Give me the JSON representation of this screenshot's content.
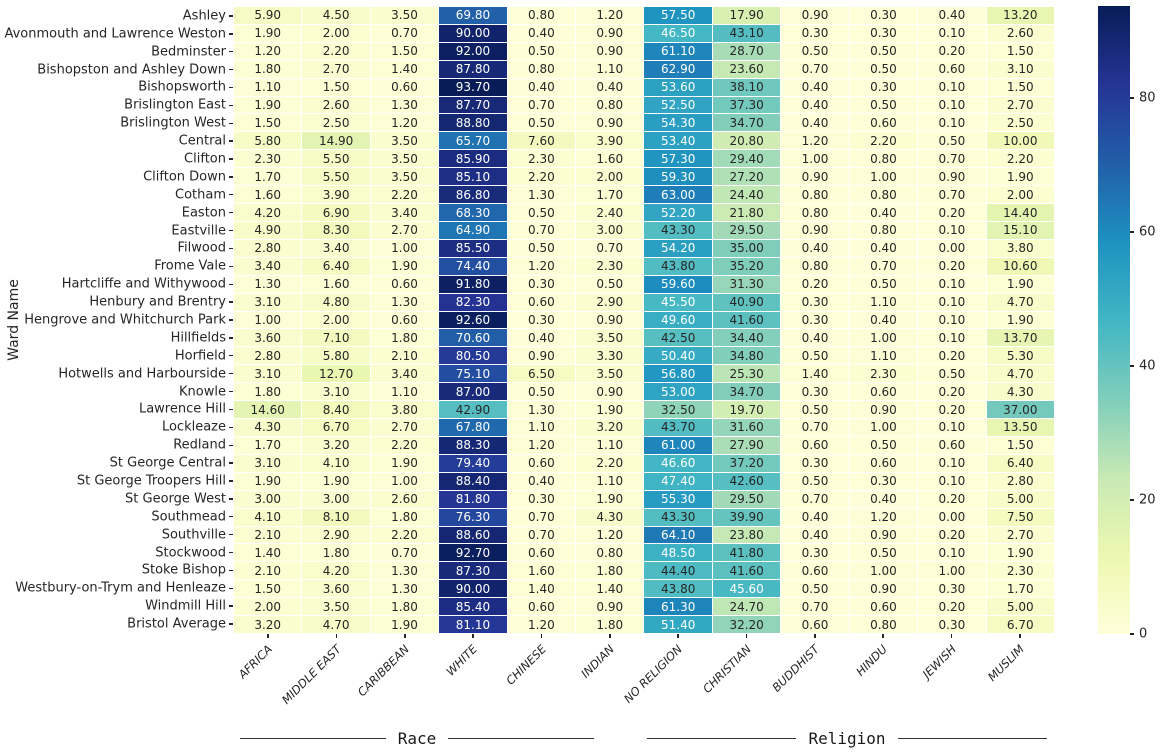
{
  "chart_data": {
    "type": "heatmap",
    "ylabel": "Ward Name",
    "colormap": "YlGnBu",
    "vmin": 0,
    "vmax": 93.7,
    "colorbar_ticks": [
      0,
      20,
      40,
      60,
      80
    ],
    "legend_position": "right",
    "columns": [
      "AFRICA",
      "MIDDLE EAST",
      "CARIBBEAN",
      "WHITE",
      "CHINESE",
      "INDIAN",
      "NO RELIGION",
      "CHRISTIAN",
      "BUDDHIST",
      "HINDU",
      "JEWISH",
      "MUSLIM"
    ],
    "xlabel_groups": [
      {
        "label": "Race",
        "columns": [
          0,
          5
        ]
      },
      {
        "label": "Religion",
        "columns": [
          6,
          11
        ]
      }
    ],
    "rows": [
      {
        "name": "Ashley",
        "values": [
          "5.90",
          "4.50",
          "3.50",
          "69.80",
          "0.80",
          "1.20",
          "57.50",
          "17.90",
          "0.90",
          "0.30",
          "0.40",
          "13.20"
        ]
      },
      {
        "name": "Avonmouth and Lawrence Weston",
        "values": [
          "1.90",
          "2.00",
          "0.70",
          "90.00",
          "0.40",
          "0.90",
          "46.50",
          "43.10",
          "0.30",
          "0.30",
          "0.10",
          "2.60"
        ]
      },
      {
        "name": "Bedminster",
        "values": [
          "1.20",
          "2.20",
          "1.50",
          "92.00",
          "0.50",
          "0.90",
          "61.10",
          "28.70",
          "0.50",
          "0.50",
          "0.20",
          "1.50"
        ]
      },
      {
        "name": "Bishopston and Ashley Down",
        "values": [
          "1.80",
          "2.70",
          "1.40",
          "87.80",
          "0.80",
          "1.10",
          "62.90",
          "23.60",
          "0.70",
          "0.50",
          "0.60",
          "3.10"
        ]
      },
      {
        "name": "Bishopsworth",
        "values": [
          "1.10",
          "1.50",
          "0.60",
          "93.70",
          "0.40",
          "0.40",
          "53.60",
          "38.10",
          "0.40",
          "0.30",
          "0.10",
          "1.50"
        ]
      },
      {
        "name": "Brislington East",
        "values": [
          "1.90",
          "2.60",
          "1.30",
          "87.70",
          "0.70",
          "0.80",
          "52.50",
          "37.30",
          "0.40",
          "0.50",
          "0.10",
          "2.70"
        ]
      },
      {
        "name": "Brislington West",
        "values": [
          "1.50",
          "2.50",
          "1.20",
          "88.80",
          "0.50",
          "0.90",
          "54.30",
          "34.70",
          "0.40",
          "0.60",
          "0.10",
          "2.50"
        ]
      },
      {
        "name": "Central",
        "values": [
          "5.80",
          "14.90",
          "3.50",
          "65.70",
          "7.60",
          "3.90",
          "53.40",
          "20.80",
          "1.20",
          "2.20",
          "0.50",
          "10.00"
        ]
      },
      {
        "name": "Clifton",
        "values": [
          "2.30",
          "5.50",
          "3.50",
          "85.90",
          "2.30",
          "1.60",
          "57.30",
          "29.40",
          "1.00",
          "0.80",
          "0.70",
          "2.20"
        ]
      },
      {
        "name": "Clifton Down",
        "values": [
          "1.70",
          "5.50",
          "3.50",
          "85.10",
          "2.20",
          "2.00",
          "59.30",
          "27.20",
          "0.90",
          "1.00",
          "0.90",
          "1.90"
        ]
      },
      {
        "name": "Cotham",
        "values": [
          "1.60",
          "3.90",
          "2.20",
          "86.80",
          "1.30",
          "1.70",
          "63.00",
          "24.40",
          "0.80",
          "0.80",
          "0.70",
          "2.00"
        ]
      },
      {
        "name": "Easton",
        "values": [
          "4.20",
          "6.90",
          "3.40",
          "68.30",
          "0.50",
          "2.40",
          "52.20",
          "21.80",
          "0.80",
          "0.40",
          "0.20",
          "14.40"
        ]
      },
      {
        "name": "Eastville",
        "values": [
          "4.90",
          "8.30",
          "2.70",
          "64.90",
          "0.70",
          "3.00",
          "43.30",
          "29.50",
          "0.90",
          "0.80",
          "0.10",
          "15.10"
        ]
      },
      {
        "name": "Filwood",
        "values": [
          "2.80",
          "3.40",
          "1.00",
          "85.50",
          "0.50",
          "0.70",
          "54.20",
          "35.00",
          "0.40",
          "0.40",
          "0.00",
          "3.80"
        ]
      },
      {
        "name": "Frome Vale",
        "values": [
          "3.40",
          "6.40",
          "1.90",
          "74.40",
          "1.20",
          "2.30",
          "43.80",
          "35.20",
          "0.80",
          "0.70",
          "0.20",
          "10.60"
        ]
      },
      {
        "name": "Hartcliffe and Withywood",
        "values": [
          "1.30",
          "1.60",
          "0.60",
          "91.80",
          "0.30",
          "0.50",
          "59.60",
          "31.30",
          "0.20",
          "0.50",
          "0.10",
          "1.90"
        ]
      },
      {
        "name": "Henbury and Brentry",
        "values": [
          "3.10",
          "4.80",
          "1.30",
          "82.30",
          "0.60",
          "2.90",
          "45.50",
          "40.90",
          "0.30",
          "1.10",
          "0.10",
          "4.70"
        ]
      },
      {
        "name": "Hengrove and Whitchurch Park",
        "values": [
          "1.00",
          "2.00",
          "0.60",
          "92.60",
          "0.30",
          "0.90",
          "49.60",
          "41.60",
          "0.30",
          "0.40",
          "0.10",
          "1.90"
        ]
      },
      {
        "name": "Hillfields",
        "values": [
          "3.60",
          "7.10",
          "1.80",
          "70.60",
          "0.40",
          "3.50",
          "42.50",
          "34.40",
          "0.40",
          "1.00",
          "0.10",
          "13.70"
        ]
      },
      {
        "name": "Horfield",
        "values": [
          "2.80",
          "5.80",
          "2.10",
          "80.50",
          "0.90",
          "3.30",
          "50.40",
          "34.80",
          "0.50",
          "1.10",
          "0.20",
          "5.30"
        ]
      },
      {
        "name": "Hotwells and Harbourside",
        "values": [
          "3.10",
          "12.70",
          "3.40",
          "75.10",
          "6.50",
          "3.50",
          "56.80",
          "25.30",
          "1.40",
          "2.30",
          "0.50",
          "4.70"
        ]
      },
      {
        "name": "Knowle",
        "values": [
          "1.80",
          "3.10",
          "1.10",
          "87.00",
          "0.50",
          "0.90",
          "53.00",
          "34.70",
          "0.30",
          "0.60",
          "0.20",
          "4.30"
        ]
      },
      {
        "name": "Lawrence Hill",
        "values": [
          "14.60",
          "8.40",
          "3.80",
          "42.90",
          "1.30",
          "1.90",
          "32.50",
          "19.70",
          "0.50",
          "0.90",
          "0.20",
          "37.00"
        ]
      },
      {
        "name": "Lockleaze",
        "values": [
          "4.30",
          "6.70",
          "2.70",
          "67.80",
          "1.10",
          "3.20",
          "43.70",
          "31.60",
          "0.70",
          "1.00",
          "0.10",
          "13.50"
        ]
      },
      {
        "name": "Redland",
        "values": [
          "1.70",
          "3.20",
          "2.20",
          "88.30",
          "1.20",
          "1.10",
          "61.00",
          "27.90",
          "0.60",
          "0.50",
          "0.60",
          "1.50"
        ]
      },
      {
        "name": "St George Central",
        "values": [
          "3.10",
          "4.10",
          "1.90",
          "79.40",
          "0.60",
          "2.20",
          "46.60",
          "37.20",
          "0.30",
          "0.60",
          "0.10",
          "6.40"
        ]
      },
      {
        "name": "St George Troopers Hill",
        "values": [
          "1.90",
          "1.90",
          "1.00",
          "88.40",
          "0.40",
          "1.10",
          "47.40",
          "42.60",
          "0.50",
          "0.30",
          "0.10",
          "2.80"
        ]
      },
      {
        "name": "St George West",
        "values": [
          "3.00",
          "3.00",
          "2.60",
          "81.80",
          "0.30",
          "1.90",
          "55.30",
          "29.50",
          "0.70",
          "0.40",
          "0.20",
          "5.00"
        ]
      },
      {
        "name": "Southmead",
        "values": [
          "4.10",
          "8.10",
          "1.80",
          "76.30",
          "0.70",
          "4.30",
          "43.30",
          "39.90",
          "0.40",
          "1.20",
          "0.00",
          "7.50"
        ]
      },
      {
        "name": "Southville",
        "values": [
          "2.10",
          "2.90",
          "2.20",
          "88.60",
          "0.70",
          "1.20",
          "64.10",
          "23.80",
          "0.40",
          "0.90",
          "0.20",
          "2.70"
        ]
      },
      {
        "name": "Stockwood",
        "values": [
          "1.40",
          "1.80",
          "0.70",
          "92.70",
          "0.60",
          "0.80",
          "48.50",
          "41.80",
          "0.30",
          "0.50",
          "0.10",
          "1.90"
        ]
      },
      {
        "name": "Stoke Bishop",
        "values": [
          "2.10",
          "4.20",
          "1.30",
          "87.30",
          "1.60",
          "1.80",
          "44.40",
          "41.60",
          "0.60",
          "1.00",
          "1.00",
          "2.30"
        ]
      },
      {
        "name": "Westbury-on-Trym and Henleaze",
        "values": [
          "1.50",
          "3.60",
          "1.30",
          "90.00",
          "1.40",
          "1.40",
          "43.80",
          "45.60",
          "0.50",
          "0.90",
          "0.30",
          "1.70"
        ]
      },
      {
        "name": "Windmill Hill",
        "values": [
          "2.00",
          "3.50",
          "1.80",
          "85.40",
          "0.60",
          "0.90",
          "61.30",
          "24.70",
          "0.70",
          "0.60",
          "0.20",
          "5.00"
        ]
      },
      {
        "name": "Bristol Average",
        "values": [
          "3.20",
          "4.70",
          "1.90",
          "81.10",
          "1.20",
          "1.80",
          "51.40",
          "32.20",
          "0.60",
          "0.80",
          "0.30",
          "6.70"
        ]
      }
    ]
  }
}
